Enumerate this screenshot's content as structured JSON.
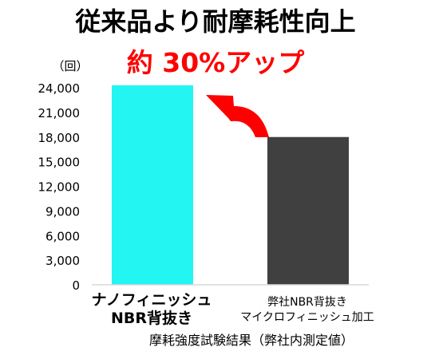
{
  "chart_data": {
    "type": "bar",
    "title": "従来品より耐摩耗性向上",
    "subtitle": "約 30%アップ",
    "ylabel": "（回）",
    "xlabel": "",
    "ylim": [
      0,
      24000
    ],
    "yticks": [
      "24,000",
      "21,000",
      "18,000",
      "15,000",
      "12,000",
      "9,000",
      "6,000",
      "3,000",
      "0"
    ],
    "yticks_values": [
      24000,
      21000,
      18000,
      15000,
      12000,
      9000,
      6000,
      3000,
      0
    ],
    "categories": [
      {
        "line1": "ナノフィニッシュ",
        "line2": "NBR背抜き"
      },
      {
        "line1": "弊社NBR背抜き",
        "line2": "マイクロフィニッシュ加工"
      }
    ],
    "values": [
      24300,
      18000
    ],
    "bar_colors": [
      "#22f5f2",
      "#404040"
    ],
    "grid": false,
    "footnote": "摩耗強度試験結果（弊社内測定値）"
  },
  "colors": {
    "accent": "#ff0000",
    "axis": "#d9d9d9"
  }
}
